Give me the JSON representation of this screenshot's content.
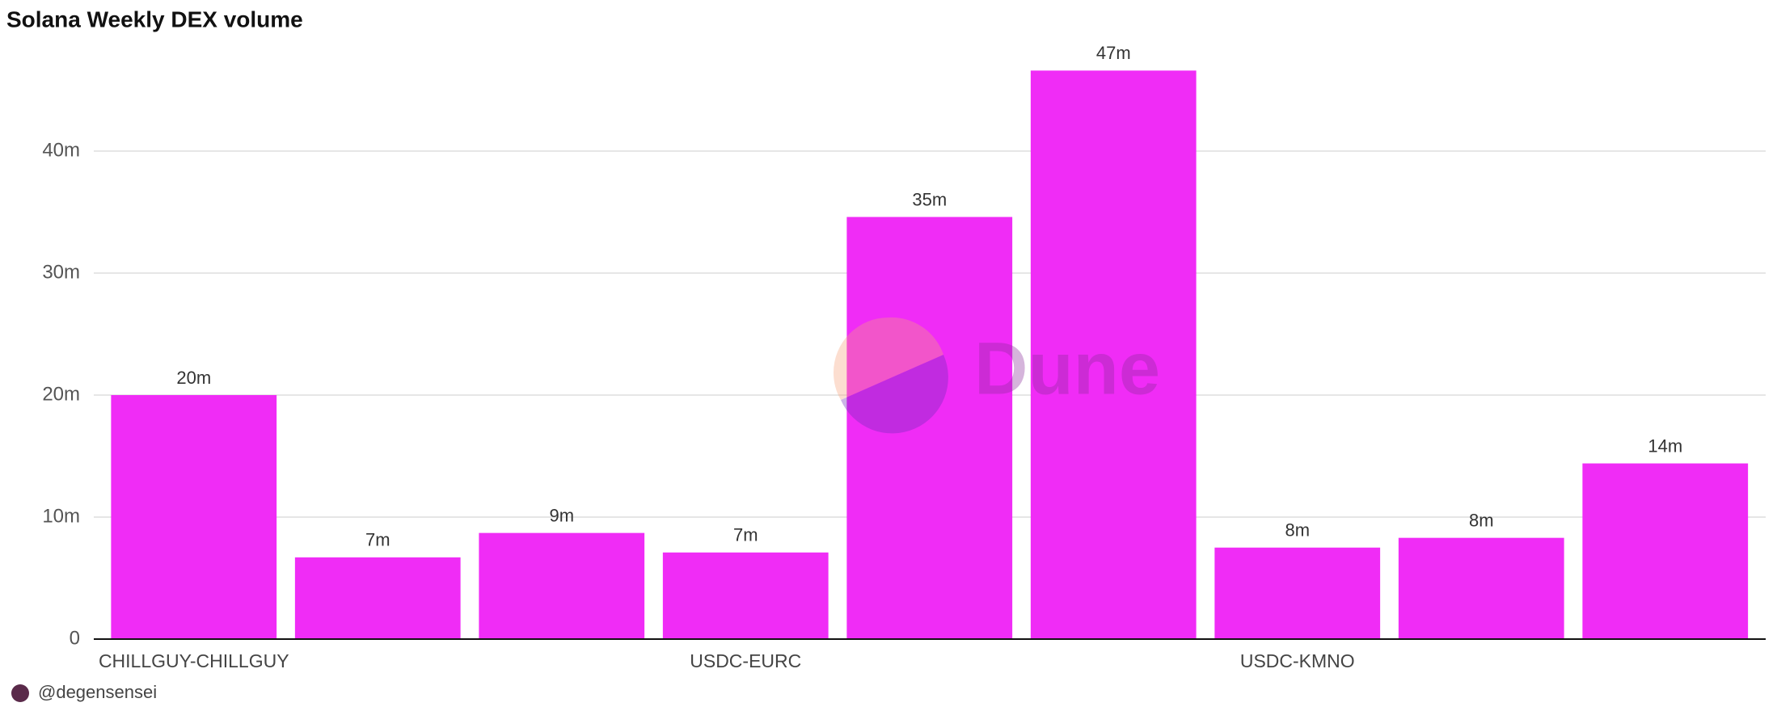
{
  "chart_data": {
    "type": "bar",
    "title": "Solana Weekly DEX volume",
    "categories": [
      "CHILLGUY-CHILLGUY",
      null,
      null,
      "USDC-EURC",
      null,
      null,
      "USDC-KMNO",
      null,
      null
    ],
    "values": [
      20,
      6.7,
      8.7,
      7.1,
      34.6,
      46.6,
      7.5,
      8.3,
      14.4
    ],
    "value_labels": [
      "20m",
      "7m",
      "9m",
      "7m",
      "35m",
      "47m",
      "8m",
      "8m",
      "14m"
    ],
    "color": "#f02cf6",
    "ylim": [
      0,
      50
    ],
    "yticks": [
      0,
      {
        "value": 10,
        "label": "10m"
      },
      {
        "value": 20,
        "label": "20m"
      },
      {
        "value": 30,
        "label": "30m"
      },
      {
        "value": 40,
        "label": "40m"
      }
    ],
    "grid": true,
    "watermark": "Dune",
    "author": "@degensensei"
  }
}
